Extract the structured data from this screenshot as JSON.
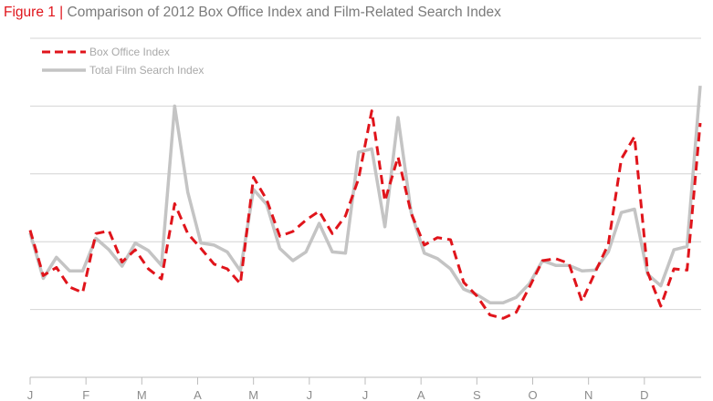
{
  "figure": {
    "number_label": "Figure 1 |",
    "title_text": "Comparison of 2012 Box Office Index and Film-Related Search Index"
  },
  "colors": {
    "box_office": "#e0141b",
    "search": "#c4c4c4",
    "grid": "#d4d4d4",
    "axis": "#bdbdbd",
    "title_accent": "#e0141b",
    "title_text": "#7a7a7a"
  },
  "chart_data": {
    "type": "line",
    "year": "2012",
    "x_labels": [
      "J",
      "F",
      "M",
      "A",
      "M",
      "J",
      "J",
      "A",
      "S",
      "O",
      "N",
      "D"
    ],
    "xlim": [
      0,
      52
    ],
    "ylim": [
      0,
      5
    ],
    "grid": "horizontal",
    "legend_position": "top-left",
    "series": [
      {
        "name": "Box Office Index",
        "style": "dashed",
        "color": "#e0141b",
        "values": [
          2.17,
          1.5,
          1.62,
          1.33,
          1.25,
          2.12,
          2.16,
          1.7,
          1.88,
          1.6,
          1.45,
          2.56,
          2.12,
          1.9,
          1.67,
          1.6,
          1.38,
          2.95,
          2.62,
          2.08,
          2.15,
          2.32,
          2.45,
          2.12,
          2.38,
          2.93,
          3.93,
          2.6,
          3.25,
          2.42,
          1.95,
          2.06,
          2.03,
          1.4,
          1.2,
          0.92,
          0.87,
          0.96,
          1.33,
          1.72,
          1.75,
          1.68,
          1.12,
          1.55,
          1.96,
          3.22,
          3.55,
          1.55,
          1.05,
          1.6,
          1.58,
          3.75
        ]
      },
      {
        "name": "Total Film Search Index",
        "style": "solid",
        "color": "#c4c4c4",
        "values": [
          2.13,
          1.46,
          1.77,
          1.57,
          1.57,
          2.05,
          1.88,
          1.64,
          1.98,
          1.87,
          1.65,
          4.0,
          2.73,
          1.98,
          1.95,
          1.85,
          1.57,
          2.77,
          2.55,
          1.9,
          1.72,
          1.85,
          2.27,
          1.85,
          1.83,
          3.32,
          3.37,
          2.22,
          3.83,
          2.43,
          1.83,
          1.75,
          1.6,
          1.3,
          1.22,
          1.1,
          1.1,
          1.18,
          1.38,
          1.72,
          1.65,
          1.65,
          1.57,
          1.58,
          1.85,
          2.43,
          2.48,
          1.52,
          1.35,
          1.88,
          1.93,
          4.3
        ]
      }
    ]
  }
}
